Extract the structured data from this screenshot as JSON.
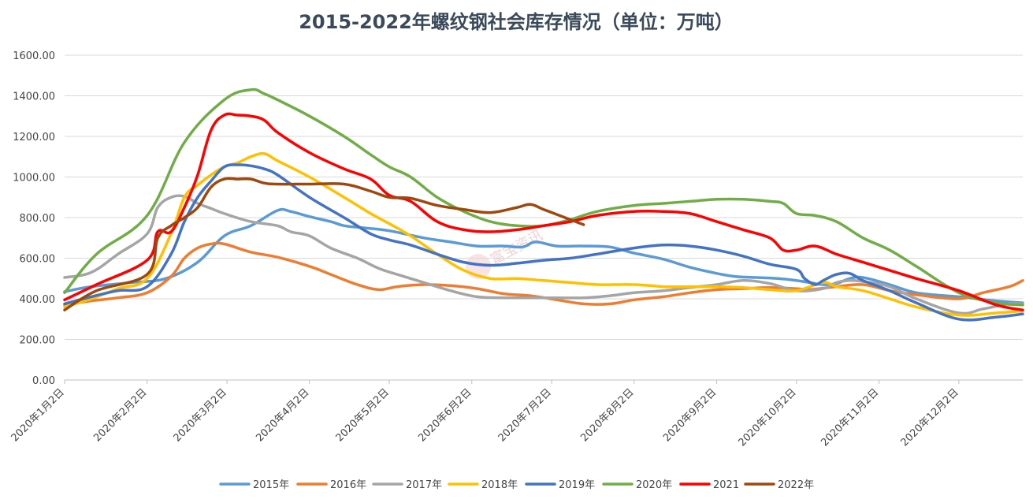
{
  "chart_data": {
    "type": "line",
    "title": "2015-2022年螺纹钢社会库存情况（单位：万吨）",
    "xlabel": "",
    "ylabel": "",
    "ylim": [
      0,
      1600
    ],
    "yticks": [
      "0.00",
      "200.00",
      "400.00",
      "600.00",
      "800.00",
      "1000.00",
      "1200.00",
      "1400.00",
      "1600.00"
    ],
    "xlim": [
      0,
      360
    ],
    "xtick_positions": [
      0,
      31,
      61,
      92,
      122,
      153,
      183,
      214,
      245,
      275,
      306,
      336
    ],
    "xtick_labels": [
      "2020年1月2日",
      "2020年2月2日",
      "2020年3月2日",
      "2020年4月2日",
      "2020年5月2日",
      "2020年6月2日",
      "2020年7月2日",
      "2020年8月2日",
      "2020年9月2日",
      "2020年10月2日",
      "2020年11月2日",
      "2020年12月2日"
    ],
    "grid": true,
    "legend_position": "bottom",
    "watermark": "富宝资讯",
    "series": [
      {
        "name": "2015年",
        "color": "#5b9bd5",
        "x": [
          0,
          10,
          25,
          38,
          50,
          60,
          70,
          80,
          85,
          92,
          100,
          105,
          112,
          122,
          135,
          145,
          155,
          165,
          172,
          177,
          185,
          195,
          205,
          214,
          225,
          235,
          245,
          252,
          260,
          268,
          275,
          280,
          285,
          290,
          295,
          300,
          310,
          320,
          336,
          350,
          360
        ],
        "y": [
          435,
          460,
          480,
          500,
          580,
          710,
          760,
          835,
          830,
          805,
          780,
          760,
          750,
          735,
          700,
          680,
          660,
          660,
          655,
          680,
          660,
          660,
          655,
          625,
          595,
          555,
          525,
          510,
          505,
          500,
          490,
          480,
          470,
          475,
          500,
          505,
          470,
          430,
          410,
          390,
          380
        ]
      },
      {
        "name": "2016年",
        "color": "#ed7d31",
        "x": [
          0,
          10,
          20,
          31,
          40,
          45,
          50,
          55,
          60,
          70,
          80,
          92,
          100,
          110,
          118,
          125,
          135,
          145,
          155,
          165,
          175,
          185,
          195,
          205,
          214,
          225,
          235,
          245,
          255,
          265,
          275,
          280,
          290,
          300,
          310,
          320,
          336,
          345,
          355,
          360
        ],
        "y": [
          370,
          390,
          405,
          430,
          510,
          600,
          650,
          670,
          670,
          630,
          605,
          560,
          520,
          470,
          445,
          460,
          470,
          465,
          450,
          425,
          415,
          395,
          375,
          375,
          395,
          410,
          430,
          445,
          450,
          455,
          450,
          445,
          460,
          470,
          440,
          420,
          400,
          430,
          460,
          490
        ]
      },
      {
        "name": "2017年",
        "color": "#a5a5a5",
        "x": [
          0,
          10,
          20,
          31,
          35,
          40,
          45,
          50,
          55,
          60,
          70,
          80,
          85,
          92,
          100,
          110,
          118,
          125,
          135,
          145,
          155,
          165,
          175,
          185,
          195,
          205,
          214,
          225,
          235,
          245,
          255,
          265,
          275,
          285,
          290,
          295,
          300,
          310,
          320,
          336,
          345,
          355,
          360
        ],
        "y": [
          505,
          530,
          620,
          720,
          850,
          900,
          905,
          870,
          845,
          820,
          780,
          760,
          730,
          710,
          650,
          600,
          550,
          520,
          480,
          440,
          410,
          405,
          405,
          405,
          405,
          415,
          430,
          440,
          455,
          470,
          490,
          475,
          440,
          450,
          480,
          490,
          485,
          460,
          400,
          330,
          350,
          375,
          375
        ]
      },
      {
        "name": "2018年",
        "color": "#ffc000",
        "x": [
          0,
          10,
          20,
          31,
          40,
          45,
          50,
          55,
          60,
          65,
          70,
          75,
          80,
          92,
          105,
          115,
          122,
          130,
          140,
          150,
          160,
          170,
          180,
          190,
          200,
          214,
          225,
          235,
          245,
          255,
          265,
          275,
          285,
          290,
          300,
          310,
          320,
          336,
          350,
          360
        ],
        "y": [
          360,
          400,
          450,
          500,
          720,
          900,
          960,
          1010,
          1050,
          1070,
          1100,
          1115,
          1080,
          1000,
          900,
          820,
          770,
          710,
          620,
          540,
          500,
          500,
          490,
          480,
          470,
          470,
          460,
          460,
          460,
          455,
          445,
          440,
          480,
          460,
          440,
          400,
          360,
          320,
          330,
          340
        ]
      },
      {
        "name": "2019年",
        "color": "#4472c4",
        "x": [
          0,
          10,
          20,
          31,
          40,
          45,
          50,
          55,
          60,
          65,
          70,
          75,
          80,
          92,
          105,
          115,
          122,
          130,
          140,
          150,
          160,
          170,
          180,
          190,
          200,
          214,
          225,
          235,
          245,
          255,
          265,
          275,
          278,
          282,
          285,
          290,
          295,
          300,
          310,
          320,
          336,
          350,
          360
        ],
        "y": [
          375,
          410,
          440,
          460,
          620,
          780,
          900,
          980,
          1050,
          1060,
          1055,
          1040,
          1010,
          900,
          800,
          720,
          690,
          665,
          620,
          580,
          565,
          575,
          590,
          600,
          620,
          650,
          665,
          660,
          640,
          610,
          570,
          545,
          500,
          470,
          490,
          520,
          525,
          490,
          440,
          380,
          300,
          310,
          325
        ]
      },
      {
        "name": "2020年",
        "color": "#70ad47",
        "x": [
          0,
          12,
          31,
          45,
          60,
          70,
          75,
          80,
          92,
          105,
          115,
          122,
          130,
          140,
          150,
          160,
          170,
          180,
          190,
          200,
          214,
          225,
          235,
          245,
          255,
          265,
          270,
          275,
          282,
          290,
          300,
          310,
          320,
          336,
          350,
          360
        ],
        "y": [
          430,
          620,
          810,
          1170,
          1380,
          1430,
          1410,
          1380,
          1300,
          1200,
          1110,
          1050,
          1000,
          900,
          830,
          780,
          760,
          760,
          790,
          830,
          860,
          870,
          880,
          890,
          890,
          880,
          870,
          820,
          810,
          780,
          700,
          640,
          560,
          430,
          380,
          370
        ]
      },
      {
        "name": "2021",
        "color": "#ff0000",
        "x": [
          0,
          12,
          31,
          35,
          40,
          45,
          50,
          55,
          60,
          65,
          70,
          75,
          80,
          92,
          105,
          115,
          122,
          130,
          140,
          150,
          160,
          170,
          180,
          190,
          200,
          214,
          225,
          235,
          245,
          255,
          265,
          270,
          275,
          282,
          290,
          300,
          310,
          320,
          336,
          350,
          360
        ],
        "y": [
          395,
          470,
          590,
          730,
          730,
          850,
          1010,
          1230,
          1305,
          1305,
          1300,
          1280,
          1220,
          1120,
          1040,
          990,
          910,
          880,
          780,
          740,
          730,
          740,
          760,
          780,
          810,
          830,
          830,
          820,
          780,
          740,
          700,
          640,
          640,
          660,
          620,
          580,
          540,
          500,
          440,
          370,
          345
        ]
      },
      {
        "name": "2022年",
        "color": "#9e480e",
        "x": [
          0,
          12,
          31,
          35,
          40,
          45,
          50,
          55,
          60,
          65,
          70,
          75,
          80,
          92,
          105,
          115,
          122,
          130,
          140,
          150,
          160,
          170,
          175,
          180,
          185,
          190,
          195
        ],
        "y": [
          345,
          440,
          520,
          700,
          760,
          800,
          850,
          950,
          990,
          990,
          990,
          970,
          965,
          965,
          965,
          930,
          900,
          895,
          860,
          840,
          825,
          850,
          865,
          840,
          815,
          790,
          765
        ]
      }
    ]
  }
}
